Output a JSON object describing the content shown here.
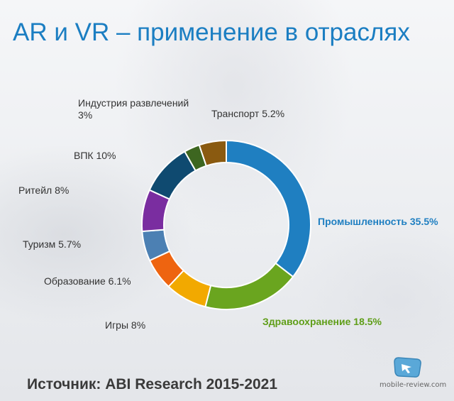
{
  "title": "AR и VR – применение в отраслях",
  "source": "Источник: ABI Research 2015-2021",
  "watermark": "mobile-review.com",
  "chart_data": {
    "type": "pie",
    "variant": "donut",
    "start_angle_deg": 0,
    "direction": "clockwise",
    "slices": [
      {
        "name": "Промышленность",
        "value": 35.5,
        "label": "Промышленность 35.5%",
        "color": "#1f7fc1",
        "label_color": "#1f7fc1",
        "bold": true
      },
      {
        "name": "Здравоохранение",
        "value": 18.5,
        "label": "Здравоохранение 18.5%",
        "color": "#6aa51f",
        "label_color": "#5f9e18",
        "bold": true
      },
      {
        "name": "Игры",
        "value": 8,
        "label": "Игры 8%",
        "color": "#f2a900",
        "label_color": "#333333",
        "bold": false
      },
      {
        "name": "Образование",
        "value": 6.1,
        "label": "Образование 6.1%",
        "color": "#ee6410",
        "label_color": "#333333",
        "bold": false
      },
      {
        "name": "Туризм",
        "value": 5.7,
        "label": "Туризм 5.7%",
        "color": "#4c80b3",
        "label_color": "#333333",
        "bold": false
      },
      {
        "name": "Ритейл",
        "value": 8,
        "label": "Ритейл 8%",
        "color": "#7a2da0",
        "label_color": "#333333",
        "bold": false
      },
      {
        "name": "ВПК",
        "value": 10,
        "label": "ВПК 10%",
        "color": "#0f4a70",
        "label_color": "#333333",
        "bold": false
      },
      {
        "name": "Индустрия развлечений",
        "value": 3,
        "label": "Индустрия развлечений\n3%",
        "color": "#3d6620",
        "label_color": "#333333",
        "bold": false
      },
      {
        "name": "Транспорт",
        "value": 5.2,
        "label": "Транспорт 5.2%",
        "color": "#8a5a10",
        "label_color": "#333333",
        "bold": false
      }
    ]
  }
}
